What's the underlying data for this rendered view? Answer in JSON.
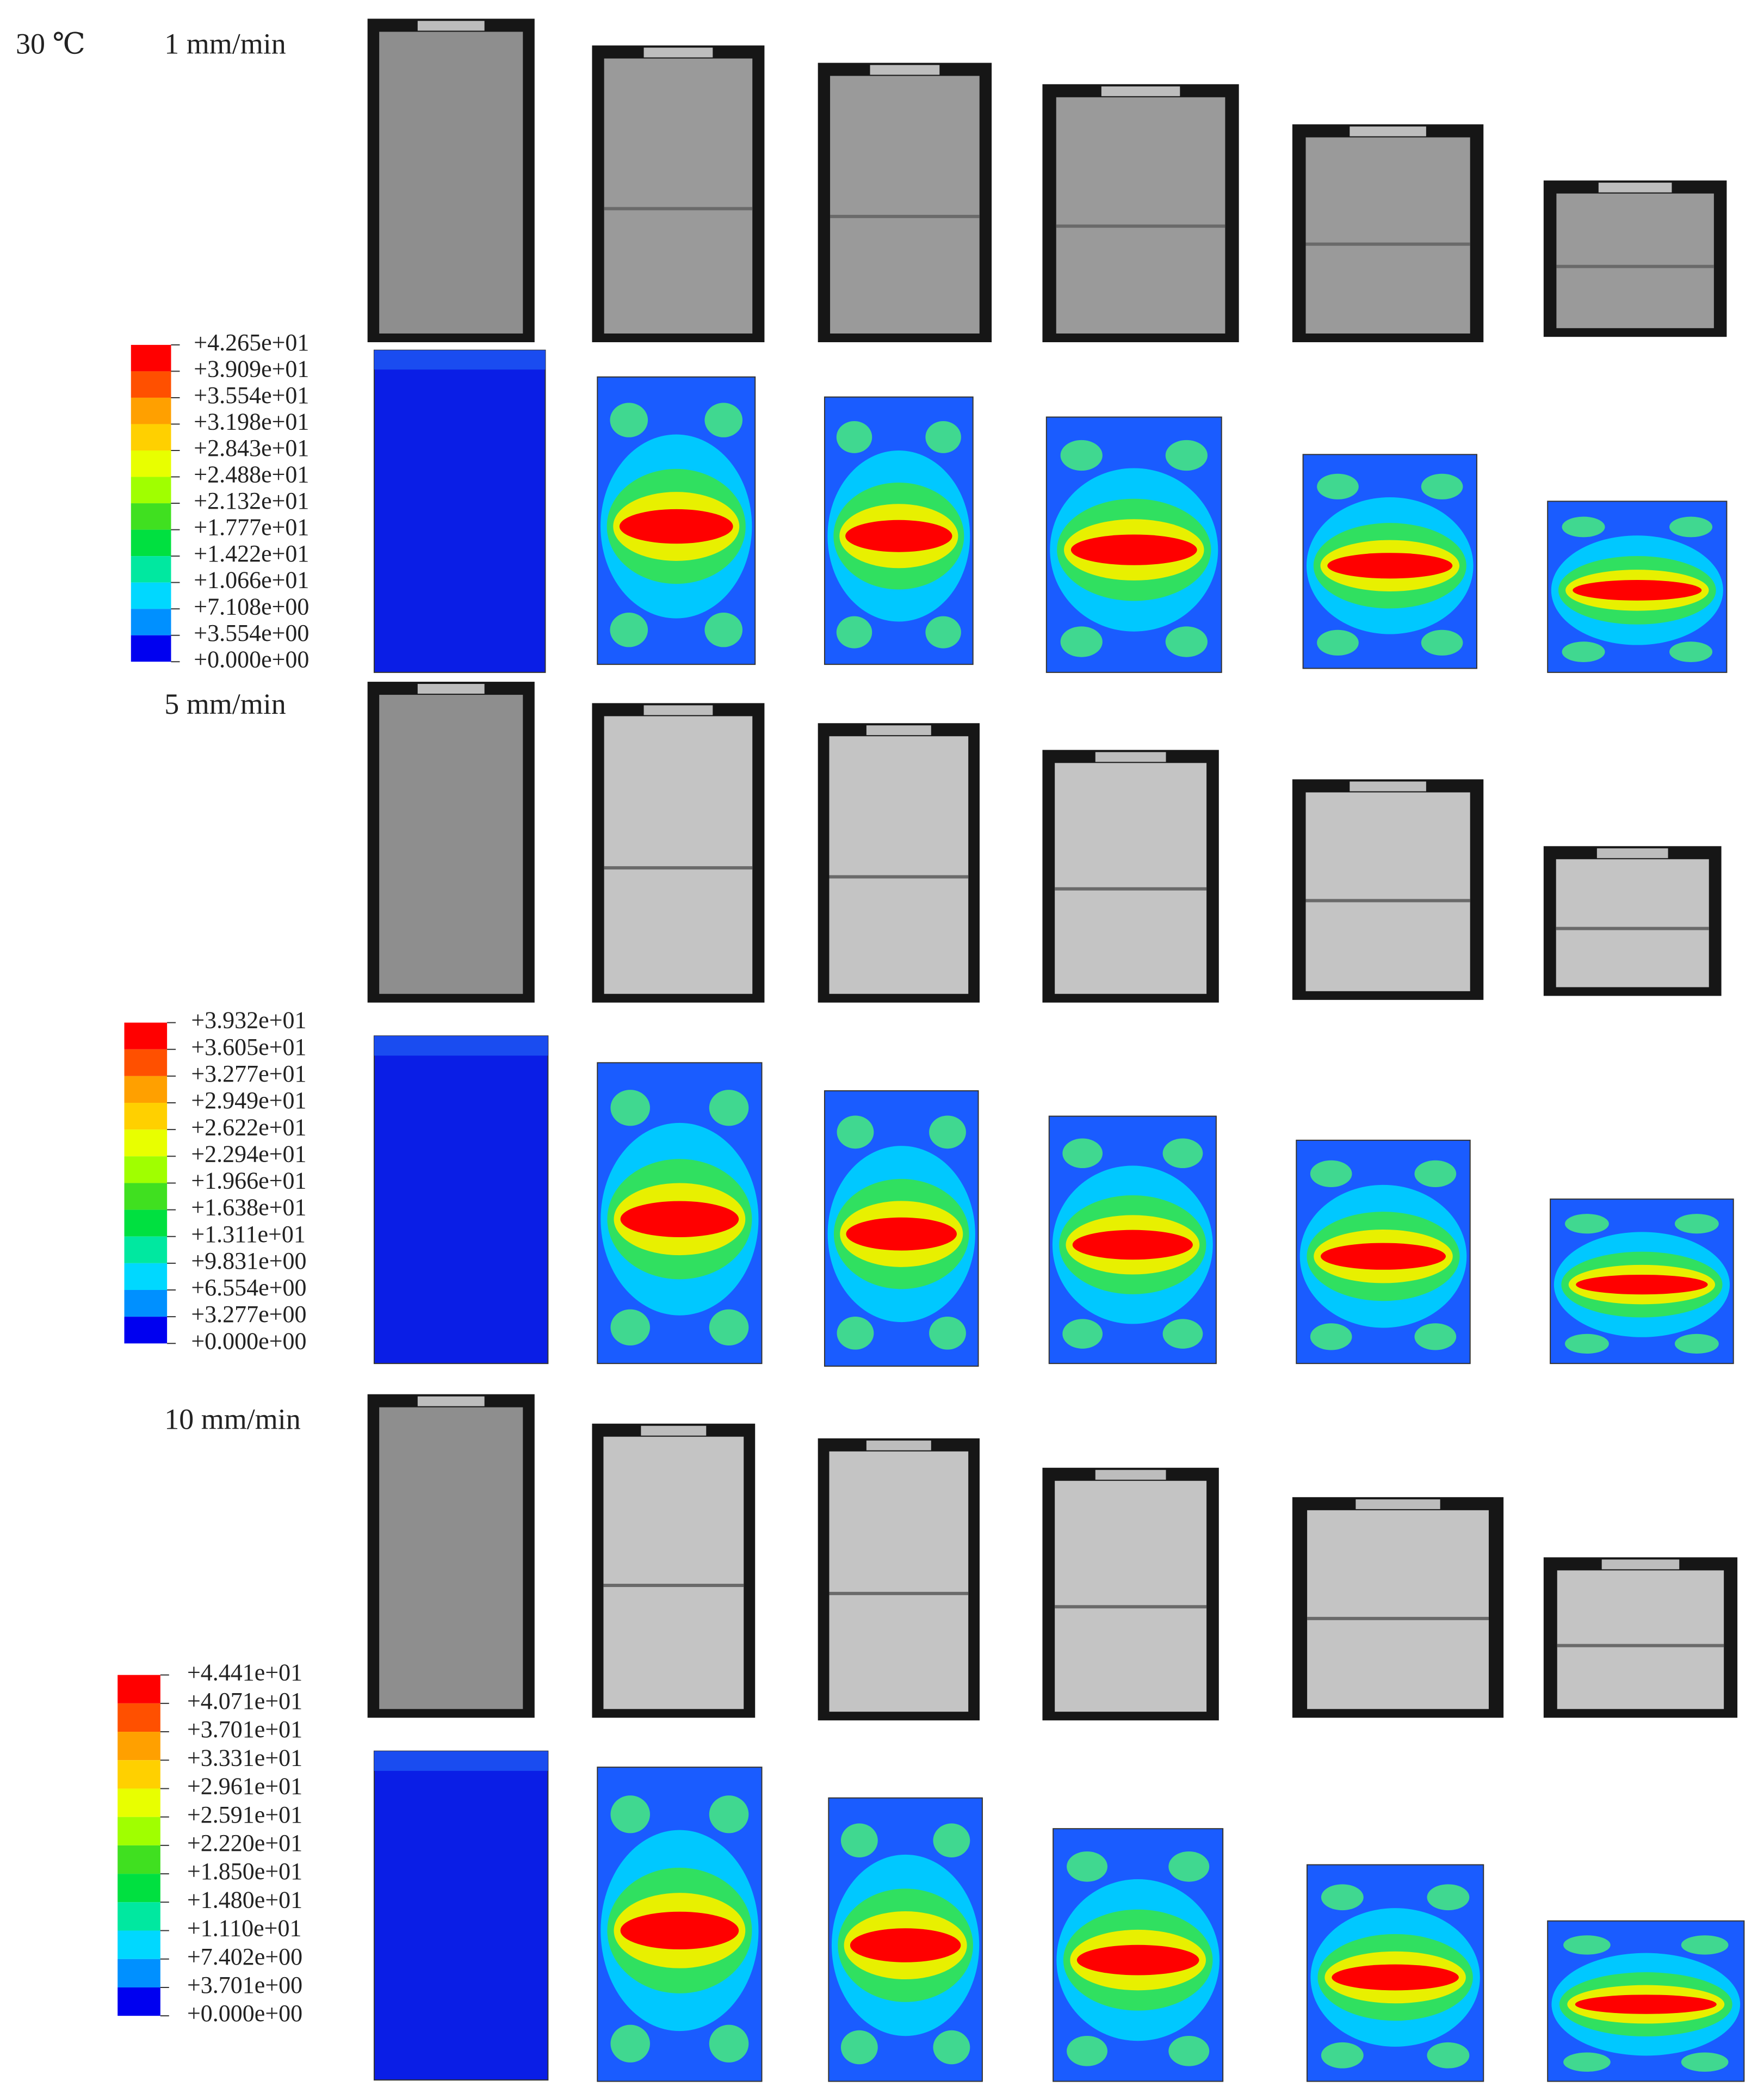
{
  "temperature": "30 ℃",
  "groups": [
    {
      "rate": "1 mm/min",
      "legend": [
        "+4.265e+01",
        "+3.909e+01",
        "+3.554e+01",
        "+3.198e+01",
        "+2.843e+01",
        "+2.488e+01",
        "+2.132e+01",
        "+1.777e+01",
        "+1.422e+01",
        "+1.066e+01",
        "+7.108e+00",
        "+3.554e+00",
        "+0.000e+00"
      ]
    },
    {
      "rate": "5 mm/min",
      "legend": [
        "+3.932e+01",
        "+3.605e+01",
        "+3.277e+01",
        "+2.949e+01",
        "+2.622e+01",
        "+2.294e+01",
        "+1.966e+01",
        "+1.638e+01",
        "+1.311e+01",
        "+9.831e+00",
        "+6.554e+00",
        "+3.277e+00",
        "+0.000e+00"
      ]
    },
    {
      "rate": "10 mm/min",
      "legend": [
        "+4.441e+01",
        "+4.071e+01",
        "+3.701e+01",
        "+3.331e+01",
        "+2.961e+01",
        "+2.591e+01",
        "+2.220e+01",
        "+1.850e+01",
        "+1.480e+01",
        "+1.110e+01",
        "+7.402e+00",
        "+3.701e+00",
        "+0.000e+00"
      ]
    }
  ]
}
